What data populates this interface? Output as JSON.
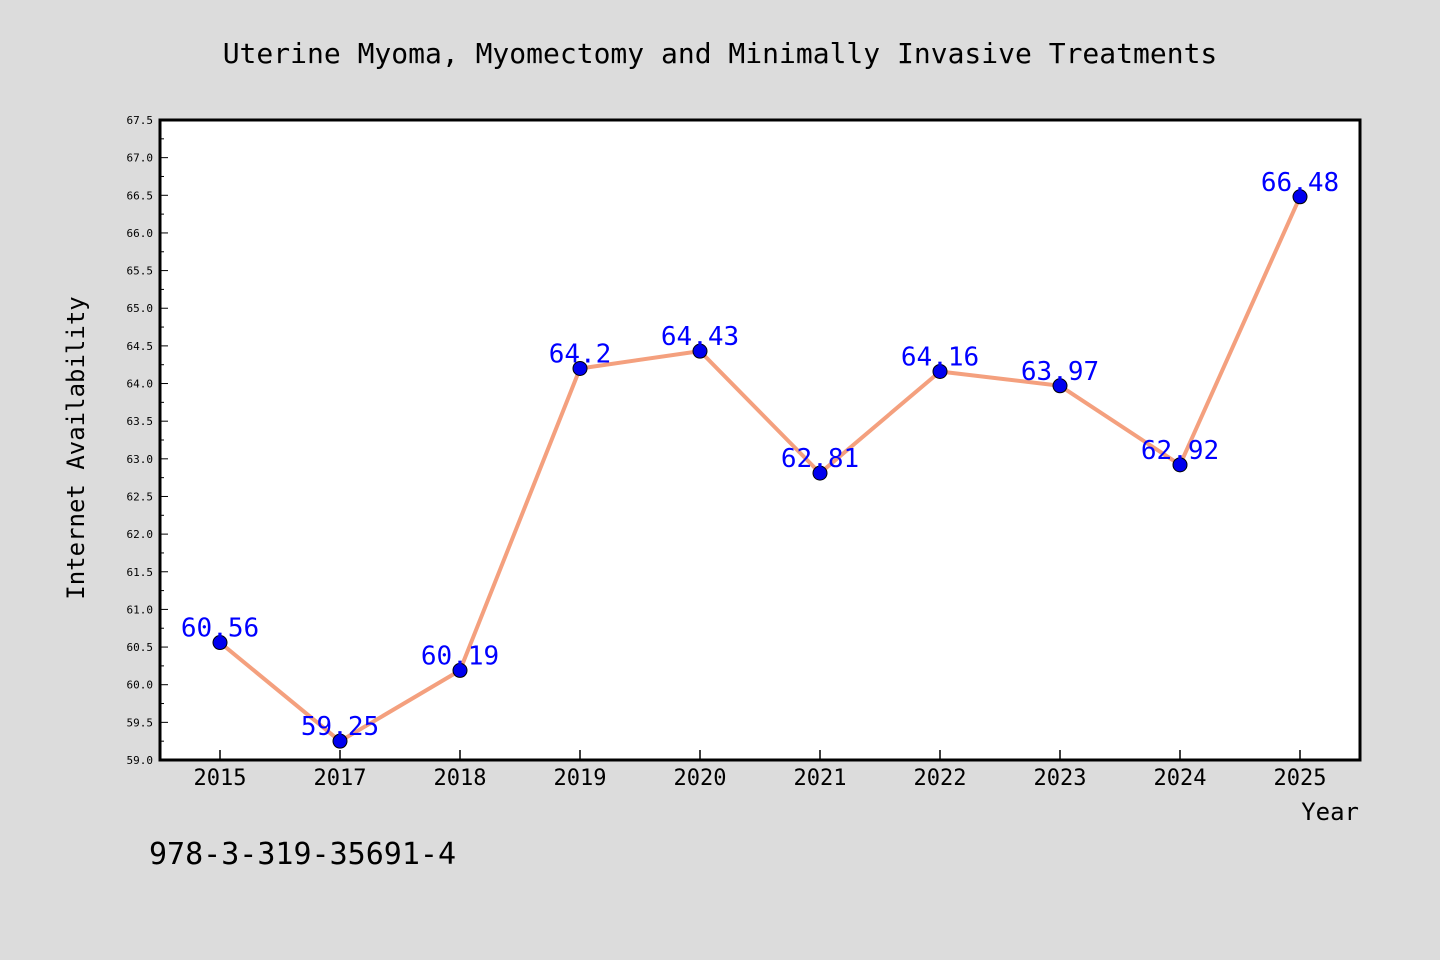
{
  "chart_data": {
    "type": "line",
    "title": "Uterine Myoma, Myomectomy and Minimally Invasive Treatments",
    "xlabel": "Year",
    "ylabel": "Internet Availability",
    "categories": [
      "2015",
      "2017",
      "2018",
      "2019",
      "2020",
      "2021",
      "2022",
      "2023",
      "2024",
      "2025"
    ],
    "series": [
      {
        "values": [
          60.56,
          59.25,
          60.19,
          64.2,
          64.43,
          62.81,
          64.16,
          63.97,
          62.92,
          66.48
        ],
        "data_labels": [
          "60.56",
          "59.25",
          "60.19",
          "64.2",
          "64.43",
          "62.81",
          "64.16",
          "63.97",
          "62.92",
          "66.48"
        ]
      }
    ],
    "ylim": [
      59.0,
      67.5
    ],
    "yticks": [
      "59.0",
      "59.5",
      "60.0",
      "60.5",
      "61.0",
      "61.5",
      "62.0",
      "62.5",
      "63.0",
      "63.5",
      "64.0",
      "64.5",
      "65.0",
      "65.5",
      "66.0",
      "66.5",
      "67.0",
      "67.5"
    ],
    "grid": false,
    "legend": "none",
    "colors": {
      "background": "#dcdcdc",
      "plot_area": "#ffffff",
      "line": "#f4a07e",
      "marker": "#0000ee",
      "data_label": "#0000ff",
      "axis": "#000000"
    }
  },
  "footer_code": "978-3-319-35691-4"
}
